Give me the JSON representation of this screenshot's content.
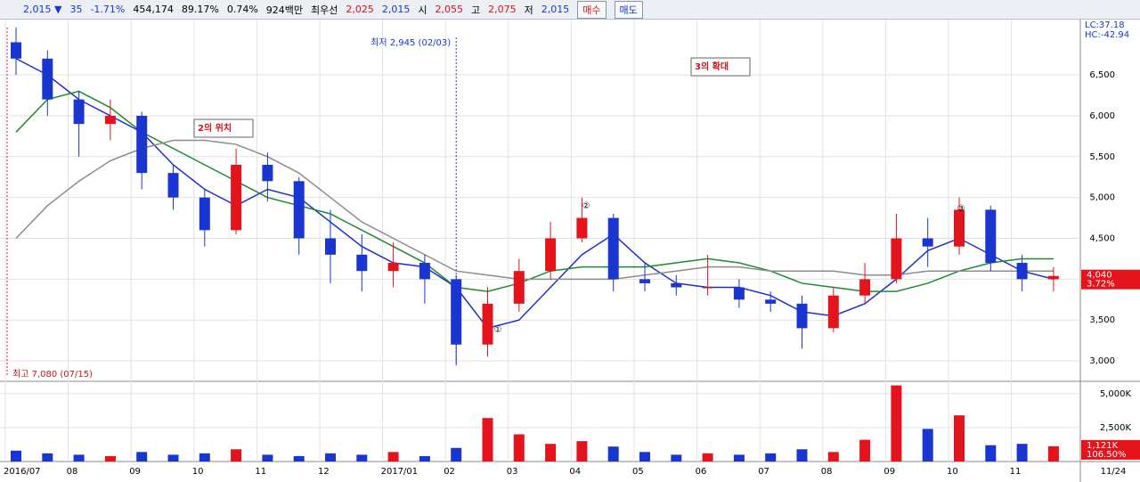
{
  "toolbar": {
    "items": [
      "2,015 ▼",
      "35",
      "-1.71%",
      "454,174",
      "89.17%",
      "0.74%",
      "924백만",
      "최우선",
      "2,025",
      "2,015",
      "시",
      "2,055",
      "고",
      "2,075",
      "저",
      "2,015"
    ],
    "buy": "매수",
    "sell": "매도"
  },
  "chart_data": {
    "type": "candlestick",
    "categories": [
      "2016/07",
      null,
      "08",
      null,
      "09",
      null,
      "10",
      null,
      "11",
      null,
      "12",
      null,
      "2017/01",
      null,
      "02",
      null,
      "03",
      null,
      "04",
      null,
      "05",
      null,
      "06",
      null,
      "07",
      null,
      "08",
      null,
      "09",
      null,
      "10",
      null,
      "11",
      null
    ],
    "open": [
      6900,
      6700,
      6200,
      5900,
      6000,
      5300,
      5000,
      4600,
      5400,
      5200,
      4500,
      4300,
      4100,
      4200,
      4000,
      3200,
      3700,
      4100,
      4500,
      4750,
      4000,
      3950,
      3900,
      3900,
      3750,
      3700,
      3400,
      3800,
      4000,
      4500,
      4400,
      4850,
      4200,
      4000
    ],
    "high": [
      7080,
      6800,
      6300,
      6200,
      6050,
      5400,
      5100,
      5600,
      5550,
      5250,
      4850,
      4550,
      4450,
      4300,
      4050,
      3900,
      4250,
      4700,
      5000,
      4800,
      4200,
      4050,
      4300,
      4000,
      3850,
      3800,
      3900,
      4200,
      4800,
      4750,
      5000,
      4900,
      4300,
      4150
    ],
    "low": [
      6500,
      6000,
      5500,
      5700,
      5100,
      4850,
      4400,
      4550,
      4950,
      4300,
      3950,
      3850,
      3900,
      3700,
      2945,
      3050,
      3600,
      4000,
      4450,
      3850,
      3850,
      3800,
      3800,
      3650,
      3600,
      3150,
      3350,
      3700,
      3950,
      4150,
      4300,
      4100,
      3850,
      3850
    ],
    "close": [
      6700,
      6200,
      5900,
      6000,
      5300,
      5000,
      4600,
      5400,
      5200,
      4500,
      4300,
      4100,
      4200,
      4000,
      3200,
      3700,
      4100,
      4500,
      4750,
      4000,
      3950,
      3900,
      3900,
      3750,
      3700,
      3400,
      3800,
      4000,
      4500,
      4400,
      4850,
      4200,
      4000,
      4040
    ],
    "up_color": "#e4141c",
    "down_color": "#1a35d0",
    "ylim": [
      2750,
      7090
    ],
    "yticks": [
      {
        "value": 3000,
        "label": "3,000"
      },
      {
        "value": 3500,
        "label": "3,500"
      },
      {
        "value": 4000,
        "label": "4,000"
      },
      {
        "value": 4500,
        "label": "4,500"
      },
      {
        "value": 5000,
        "label": "5,000"
      },
      {
        "value": 5500,
        "label": "5,500"
      },
      {
        "value": 6000,
        "label": "6,000"
      },
      {
        "value": 6500,
        "label": "6,500"
      }
    ],
    "grid": true,
    "series": [
      {
        "color": "#1f2fcf",
        "values": [
          6700,
          6500,
          6200,
          6000,
          5800,
          5400,
          5100,
          4900,
          5100,
          5000,
          4700,
          4400,
          4200,
          4150,
          3900,
          3400,
          3500,
          3900,
          4300,
          4550,
          4200,
          3950,
          3900,
          3900,
          3800,
          3600,
          3550,
          3700,
          4000,
          4350,
          4500,
          4300,
          4100,
          4000
        ]
      },
      {
        "color": "#1e8a2e",
        "values": [
          5800,
          6200,
          6300,
          6100,
          5800,
          5600,
          5400,
          5200,
          5000,
          4900,
          4800,
          4600,
          4400,
          4200,
          3900,
          3850,
          3950,
          4100,
          4150,
          4150,
          4150,
          4200,
          4250,
          4200,
          4100,
          3950,
          3900,
          3850,
          3850,
          3950,
          4100,
          4200,
          4250,
          4250
        ]
      },
      {
        "color": "#8c8c8c",
        "values": [
          4500,
          4900,
          5200,
          5450,
          5600,
          5700,
          5700,
          5650,
          5500,
          5300,
          5000,
          4700,
          4500,
          4300,
          4100,
          4050,
          4000,
          4000,
          4000,
          4000,
          4050,
          4100,
          4150,
          4150,
          4100,
          4100,
          4100,
          4050,
          4050,
          4100,
          4100,
          4100,
          4100,
          4100
        ]
      }
    ],
    "annotations": [
      "최저 2,945 (02/03)",
      "최고 7,080 (07/15)",
      "2의 위치",
      "3의 확대",
      "①",
      "②",
      "③"
    ],
    "right_labels": [
      "LC:37.18",
      "HC:-42.94",
      "4,040",
      "3.72%"
    ],
    "volume": {
      "values": [
        800,
        600,
        500,
        400,
        700,
        500,
        600,
        900,
        500,
        400,
        600,
        500,
        700,
        400,
        1000,
        3200,
        2000,
        1300,
        1500,
        1100,
        700,
        500,
        600,
        500,
        600,
        900,
        700,
        1600,
        5600,
        2400,
        3400,
        1200,
        1300,
        1121
      ],
      "ylim": [
        0,
        5640
      ],
      "yticks": [
        {
          "value": 2500,
          "label": "2,500K"
        },
        {
          "value": 5000,
          "label": "5,000K"
        }
      ],
      "last_label": "1,121K",
      "ratio": "106.50%"
    },
    "last_date": "11/24"
  }
}
